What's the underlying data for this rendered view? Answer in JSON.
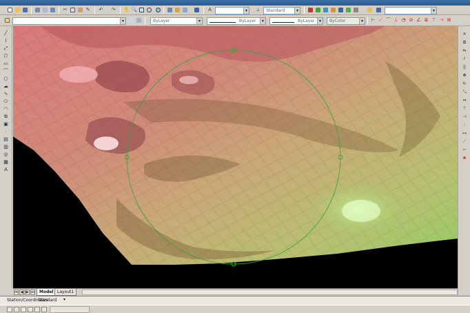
{
  "toolbar_top": {
    "search_value": "",
    "layer_combo": "",
    "textstyle_combo": "Standard"
  },
  "toolbar_properties": {
    "layer_combo": "",
    "color_combo": "ByLayer",
    "linetype_combo": "ByLayer",
    "lineweight_combo": "ByLayer",
    "plotstyle_combo": "ByColor"
  },
  "layout_tabs": [
    {
      "label": "Model",
      "active": true
    },
    {
      "label": "Layout1",
      "active": false
    }
  ],
  "command_line": {
    "prompt": "Station/Coordinates",
    "value": "Standard"
  },
  "colors": {
    "viewport_bg": "#000000",
    "surface_red": "#d9787a",
    "surface_tan": "#c9a777",
    "surface_green": "#9ccb6a",
    "circle": "#3aa33a"
  },
  "icons": {
    "left_toolbar": [
      "line-icon",
      "polyline-icon",
      "construction-line-icon",
      "polygon-icon",
      "rectangle-icon",
      "arc-icon",
      "circle-icon",
      "revcloud-icon",
      "spline-icon",
      "ellipse-icon",
      "ellipse-arc-icon",
      "insert-block-icon",
      "make-block-icon",
      "point-icon",
      "hatch-icon",
      "gradient-icon",
      "region-icon",
      "table-icon",
      "mtext-icon"
    ],
    "right_toolbar": [
      "erase-icon",
      "copy-icon",
      "mirror-icon",
      "offset-icon",
      "array-icon",
      "move-icon",
      "rotate-icon",
      "scale-icon",
      "stretch-icon",
      "trim-icon",
      "extend-icon",
      "break-icon",
      "join-icon",
      "chamfer-icon",
      "fillet-icon",
      "explode-icon"
    ]
  }
}
